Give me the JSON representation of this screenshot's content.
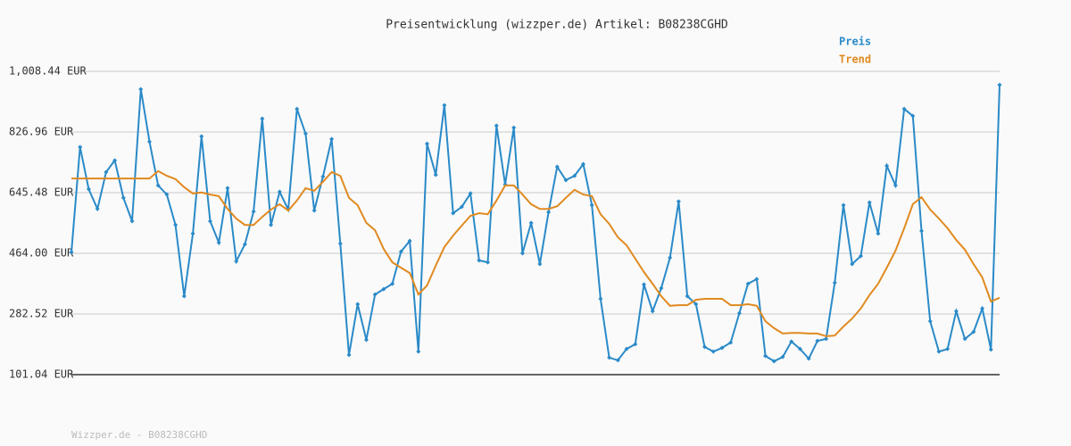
{
  "chart_data": {
    "type": "line",
    "title": "Preisentwicklung (wizzper.de) Artikel: B08238CGHD",
    "footer": "Wizzper.de - B08238CGHD",
    "ylim": [
      101.04,
      1008.44
    ],
    "yticks": [
      {
        "value": 101.04,
        "label": "101.04 EUR"
      },
      {
        "value": 282.52,
        "label": "282.52 EUR"
      },
      {
        "value": 464.0,
        "label": "464.00 EUR"
      },
      {
        "value": 645.48,
        "label": "645.48 EUR"
      },
      {
        "value": 826.96,
        "label": "826.96 EUR"
      },
      {
        "value": 1008.44,
        "label": "1,008.44 EUR"
      }
    ],
    "grid": true,
    "legend": "top-right",
    "series": [
      {
        "name": "Preis",
        "color": "#2a8ac8",
        "markers": true,
        "values": [
          467,
          782,
          656,
          597,
          707,
          742,
          630,
          560,
          955,
          798,
          667,
          640,
          549,
          336,
          523,
          814,
          560,
          496,
          659,
          440,
          491,
          589,
          867,
          549,
          648,
          595,
          896,
          822,
          592,
          694,
          806,
          493,
          160,
          312,
          205,
          341,
          357,
          373,
          469,
          501,
          170,
          792,
          699,
          907,
          584,
          603,
          643,
          443,
          437,
          846,
          670,
          840,
          464,
          555,
          432,
          587,
          723,
          683,
          696,
          731,
          608,
          328,
          152,
          144,
          178,
          192,
          371,
          291,
          360,
          451,
          619,
          336,
          312,
          184,
          170,
          181,
          197,
          285,
          373,
          387,
          157,
          141,
          154,
          200,
          178,
          149,
          202,
          208,
          376,
          608,
          432,
          456,
          616,
          523,
          726,
          667,
          896,
          875,
          531,
          261,
          170,
          178,
          291,
          208,
          229,
          299,
          176,
          968
        ]
      },
      {
        "name": "Trend",
        "color": "#e08a20",
        "markers": false,
        "values": [
          688,
          688,
          688,
          688,
          688,
          688,
          688,
          688,
          688,
          688,
          710,
          696,
          686,
          662,
          643,
          646,
          640,
          635,
          597,
          568,
          549,
          549,
          573,
          595,
          611,
          592,
          622,
          659,
          651,
          678,
          707,
          696,
          630,
          608,
          555,
          533,
          477,
          437,
          421,
          405,
          341,
          368,
          427,
          483,
          517,
          547,
          576,
          584,
          581,
          622,
          667,
          667,
          640,
          611,
          597,
          597,
          605,
          630,
          654,
          640,
          635,
          581,
          552,
          512,
          488,
          448,
          408,
          373,
          336,
          307,
          309,
          309,
          325,
          328,
          328,
          328,
          309,
          309,
          312,
          307,
          261,
          240,
          224,
          226,
          226,
          224,
          224,
          216,
          218,
          245,
          269,
          299,
          339,
          373,
          421,
          472,
          539,
          611,
          632,
          595,
          568,
          539,
          504,
          475,
          432,
          392,
          320,
          331
        ]
      }
    ]
  }
}
